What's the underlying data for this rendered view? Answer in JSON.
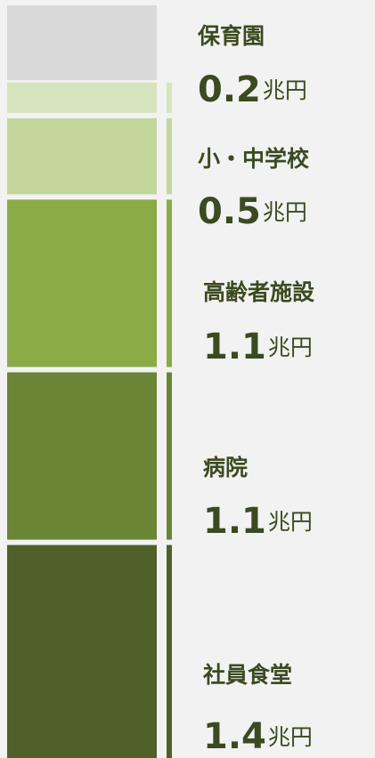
{
  "chart_data": {
    "type": "stacked-column",
    "categories": [
      "保育園",
      "小・中学校",
      "高齢者施設",
      "病院",
      "社員食堂"
    ],
    "values": [
      0.2,
      0.5,
      1.1,
      1.1,
      1.4
    ],
    "unit": "兆円",
    "colors": [
      "#d6e4bd",
      "#c3d69c",
      "#8aab46",
      "#6a8535",
      "#4f6128"
    ]
  }
}
